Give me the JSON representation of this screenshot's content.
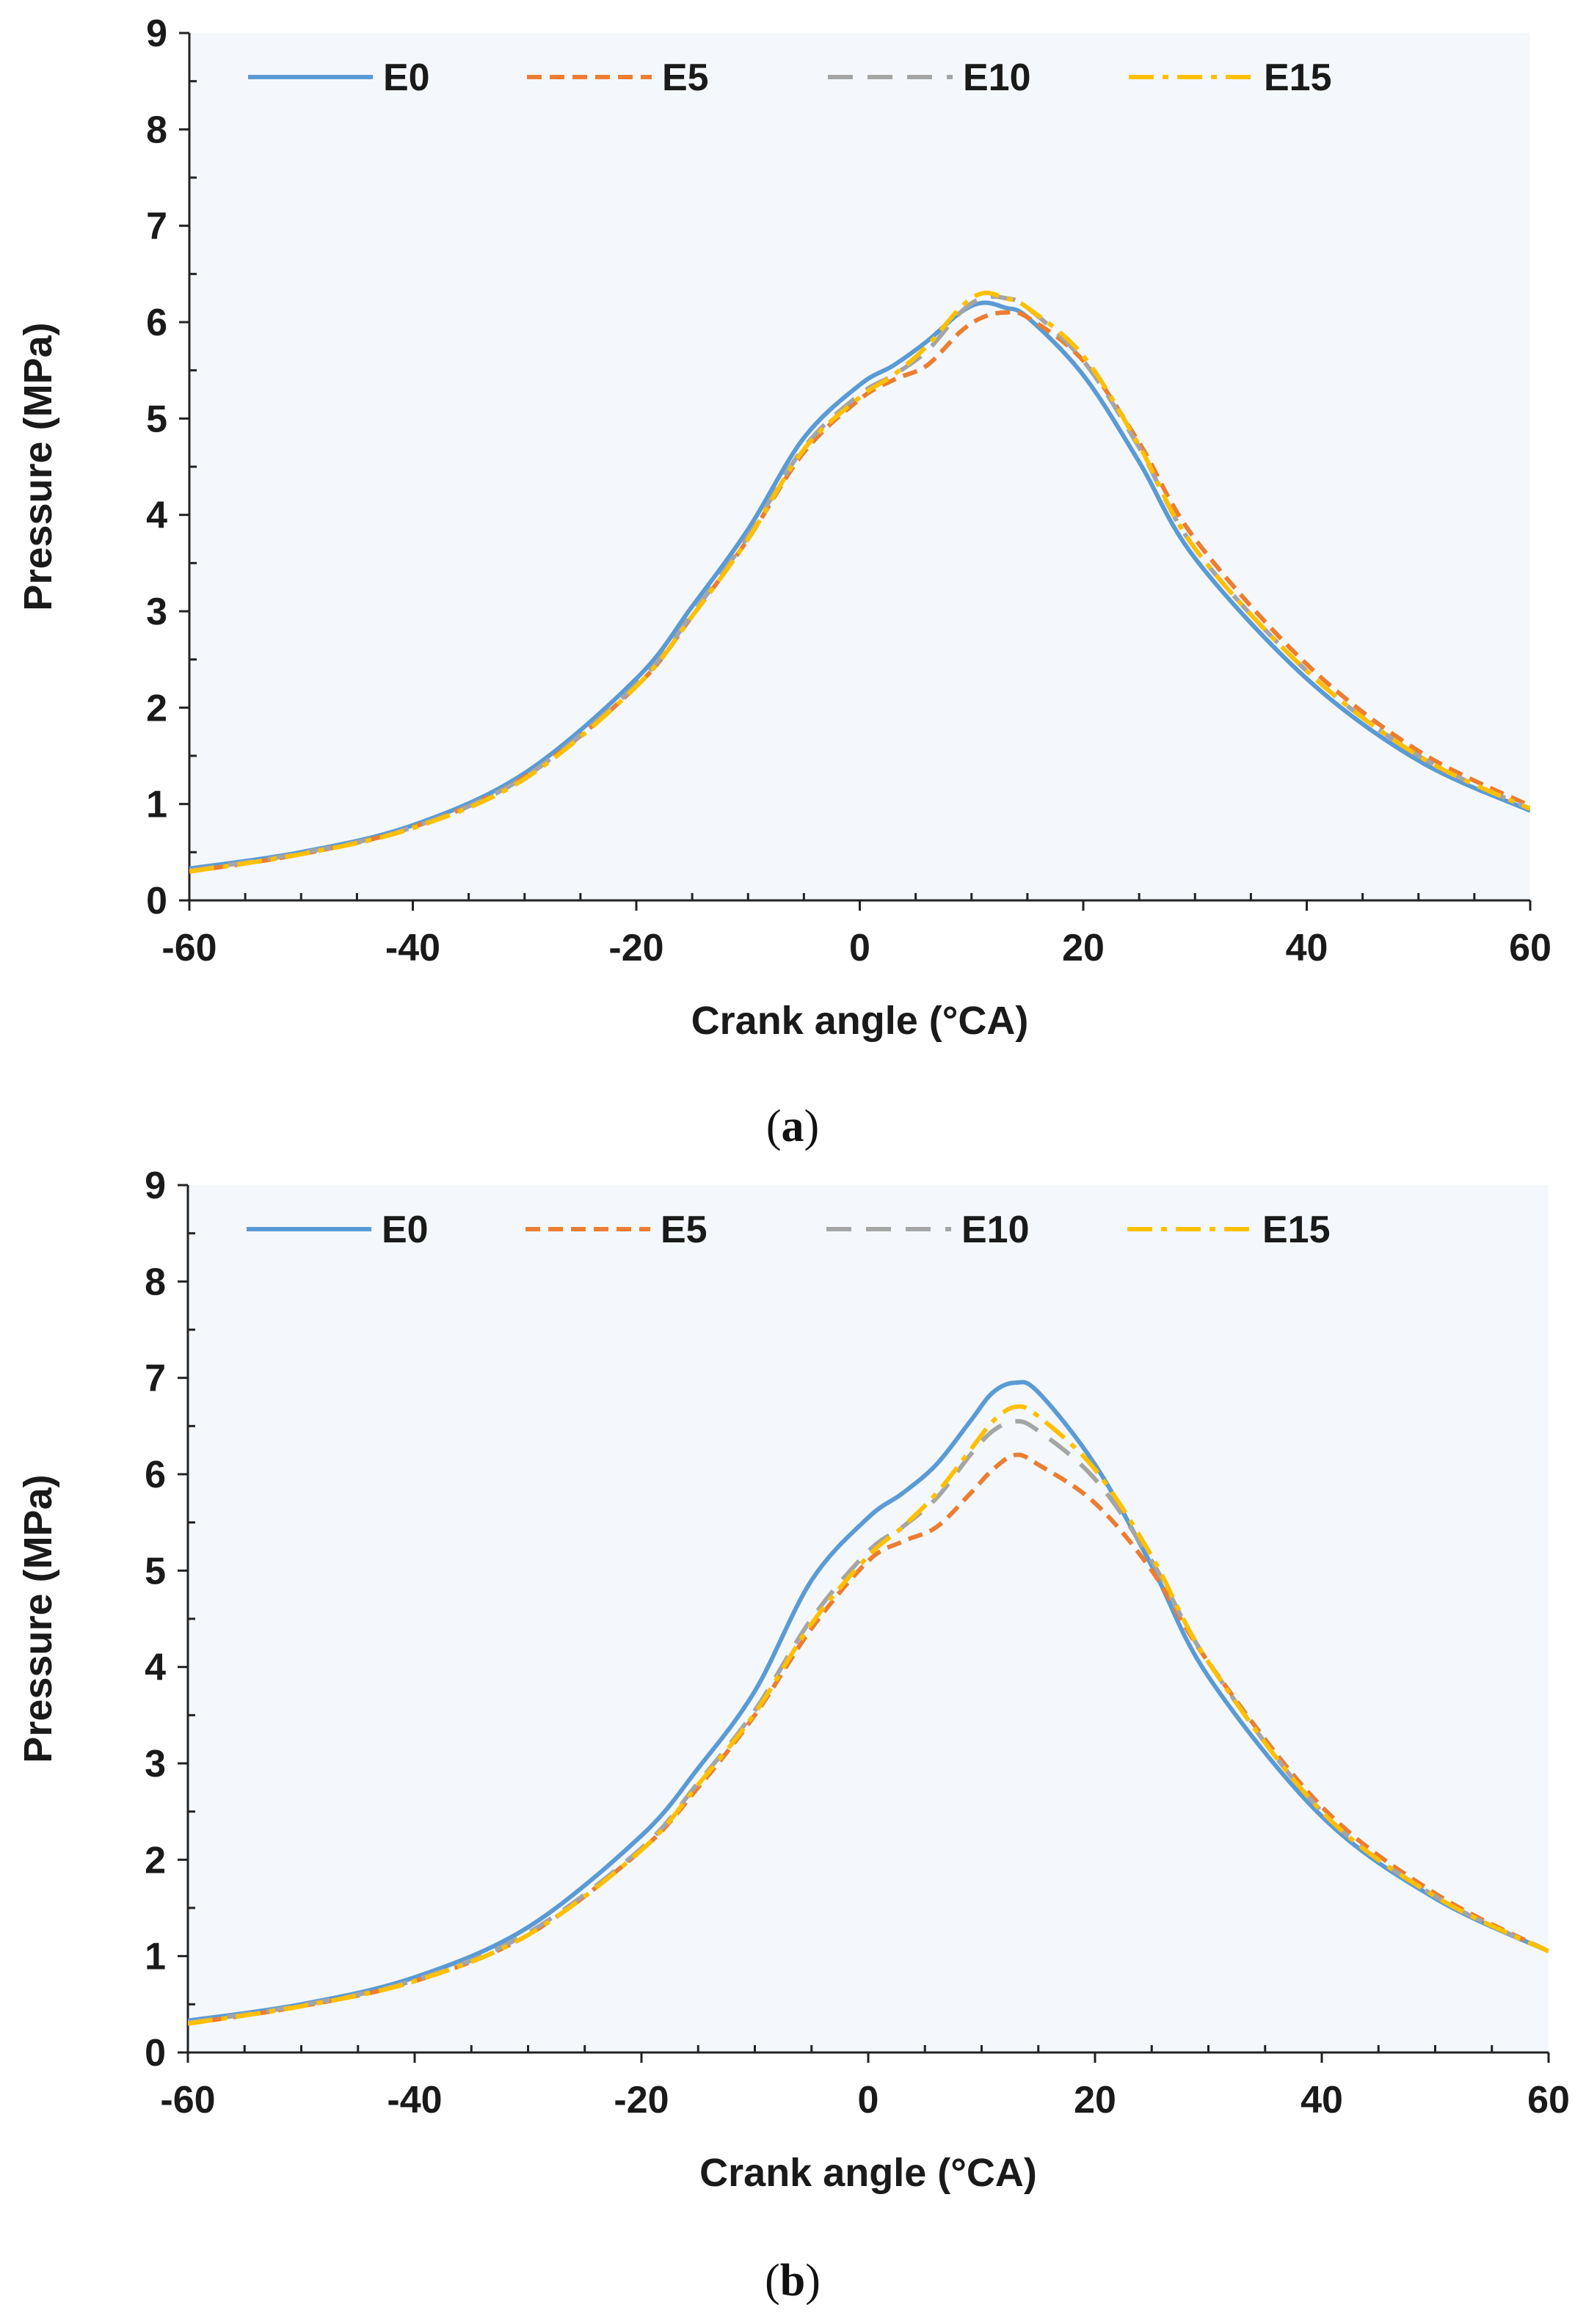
{
  "chart_data": [
    {
      "type": "line",
      "panel_label": "b",
      "xlabel": "Crank angle (°CA)",
      "ylabel": "Pressure (MPa)",
      "xlim": [
        -60,
        60
      ],
      "ylim": [
        0,
        9
      ],
      "xticks": [
        -60,
        -40,
        -20,
        0,
        20,
        40,
        60
      ],
      "yticks": [
        0,
        1,
        2,
        3,
        4,
        5,
        6,
        7,
        8,
        9
      ],
      "legend_position": "top",
      "series": [
        {
          "name": "E0",
          "color": "#5B9BD5",
          "style": "solid",
          "x": [
            -60,
            -50,
            -40,
            -30,
            -20,
            -15,
            -10,
            -5,
            0,
            3,
            6,
            9,
            11,
            13,
            15,
            20,
            25,
            30,
            40,
            50,
            60
          ],
          "y": [
            0.33,
            0.5,
            0.78,
            1.3,
            2.25,
            2.95,
            3.75,
            4.9,
            5.55,
            5.8,
            6.1,
            6.55,
            6.85,
            6.95,
            6.85,
            6.1,
            5.05,
            3.9,
            2.45,
            1.6,
            1.05
          ]
        },
        {
          "name": "E5",
          "color": "#ED7D31",
          "style": "dashed",
          "x": [
            -60,
            -50,
            -40,
            -30,
            -20,
            -15,
            -10,
            -5,
            0,
            3,
            6,
            9,
            11,
            13,
            15,
            20,
            25,
            30,
            40,
            50,
            60
          ],
          "y": [
            0.3,
            0.48,
            0.74,
            1.22,
            2.1,
            2.75,
            3.5,
            4.4,
            5.1,
            5.3,
            5.45,
            5.8,
            6.05,
            6.2,
            6.1,
            5.7,
            5.0,
            4.05,
            2.55,
            1.65,
            1.05
          ]
        },
        {
          "name": "E10",
          "color": "#A5A5A5",
          "style": "longdash",
          "x": [
            -60,
            -50,
            -40,
            -30,
            -20,
            -15,
            -10,
            -5,
            0,
            3,
            6,
            9,
            11,
            13,
            15,
            20,
            25,
            30,
            40,
            50,
            60
          ],
          "y": [
            0.31,
            0.49,
            0.75,
            1.24,
            2.12,
            2.8,
            3.55,
            4.5,
            5.2,
            5.45,
            5.75,
            6.2,
            6.45,
            6.55,
            6.45,
            5.95,
            5.1,
            4.05,
            2.5,
            1.62,
            1.05
          ]
        },
        {
          "name": "E15",
          "color": "#FFC000",
          "style": "dashdot",
          "x": [
            -60,
            -50,
            -40,
            -30,
            -20,
            -15,
            -10,
            -5,
            0,
            3,
            6,
            9,
            11,
            13,
            15,
            20,
            25,
            30,
            40,
            50,
            60
          ],
          "y": [
            0.3,
            0.48,
            0.74,
            1.22,
            2.1,
            2.78,
            3.52,
            4.45,
            5.15,
            5.45,
            5.8,
            6.25,
            6.55,
            6.7,
            6.6,
            6.05,
            5.15,
            4.05,
            2.5,
            1.62,
            1.05
          ]
        }
      ]
    }
  ],
  "chart_data_panel_a": {
    "type": "line",
    "panel_label": "a",
    "xlabel": "Crank angle (°CA)",
    "ylabel": "Pressure (MPa)",
    "xlim": [
      -60,
      60
    ],
    "ylim": [
      0,
      9
    ],
    "xticks": [
      -60,
      -40,
      -20,
      0,
      20,
      40,
      60
    ],
    "yticks": [
      0,
      1,
      2,
      3,
      4,
      5,
      6,
      7,
      8,
      9
    ],
    "legend_position": "top",
    "series": [
      {
        "name": "E0",
        "color": "#5B9BD5",
        "style": "solid",
        "x": [
          -60,
          -50,
          -40,
          -30,
          -20,
          -15,
          -10,
          -5,
          0,
          3,
          6,
          9,
          11,
          13,
          15,
          20,
          25,
          30,
          40,
          50,
          60
        ],
        "y": [
          0.33,
          0.5,
          0.78,
          1.32,
          2.3,
          3.05,
          3.85,
          4.8,
          5.35,
          5.55,
          5.8,
          6.1,
          6.2,
          6.15,
          6.05,
          5.45,
          4.55,
          3.55,
          2.3,
          1.45,
          0.93
        ]
      },
      {
        "name": "E5",
        "color": "#ED7D31",
        "style": "dashed",
        "x": [
          -60,
          -50,
          -40,
          -30,
          -20,
          -15,
          -10,
          -5,
          0,
          3,
          6,
          9,
          11,
          13,
          15,
          20,
          25,
          30,
          40,
          50,
          60
        ],
        "y": [
          0.3,
          0.48,
          0.76,
          1.28,
          2.22,
          2.95,
          3.75,
          4.65,
          5.2,
          5.4,
          5.55,
          5.9,
          6.05,
          6.1,
          6.05,
          5.6,
          4.75,
          3.75,
          2.45,
          1.55,
          0.98
        ]
      },
      {
        "name": "E10",
        "color": "#A5A5A5",
        "style": "longdash",
        "x": [
          -60,
          -50,
          -40,
          -30,
          -20,
          -15,
          -10,
          -5,
          0,
          3,
          6,
          9,
          11,
          13,
          15,
          20,
          25,
          30,
          40,
          50,
          60
        ],
        "y": [
          0.31,
          0.49,
          0.76,
          1.28,
          2.24,
          2.97,
          3.78,
          4.7,
          5.25,
          5.45,
          5.7,
          6.1,
          6.25,
          6.25,
          6.15,
          5.6,
          4.7,
          3.65,
          2.38,
          1.5,
          0.95
        ]
      },
      {
        "name": "E15",
        "color": "#FFC000",
        "style": "dashdot",
        "x": [
          -60,
          -50,
          -40,
          -30,
          -20,
          -15,
          -10,
          -5,
          0,
          3,
          6,
          9,
          11,
          13,
          15,
          20,
          25,
          30,
          40,
          50,
          60
        ],
        "y": [
          0.3,
          0.48,
          0.75,
          1.26,
          2.22,
          2.95,
          3.75,
          4.68,
          5.22,
          5.45,
          5.75,
          6.15,
          6.3,
          6.25,
          6.15,
          5.65,
          4.72,
          3.65,
          2.38,
          1.5,
          0.95
        ]
      }
    ]
  }
}
